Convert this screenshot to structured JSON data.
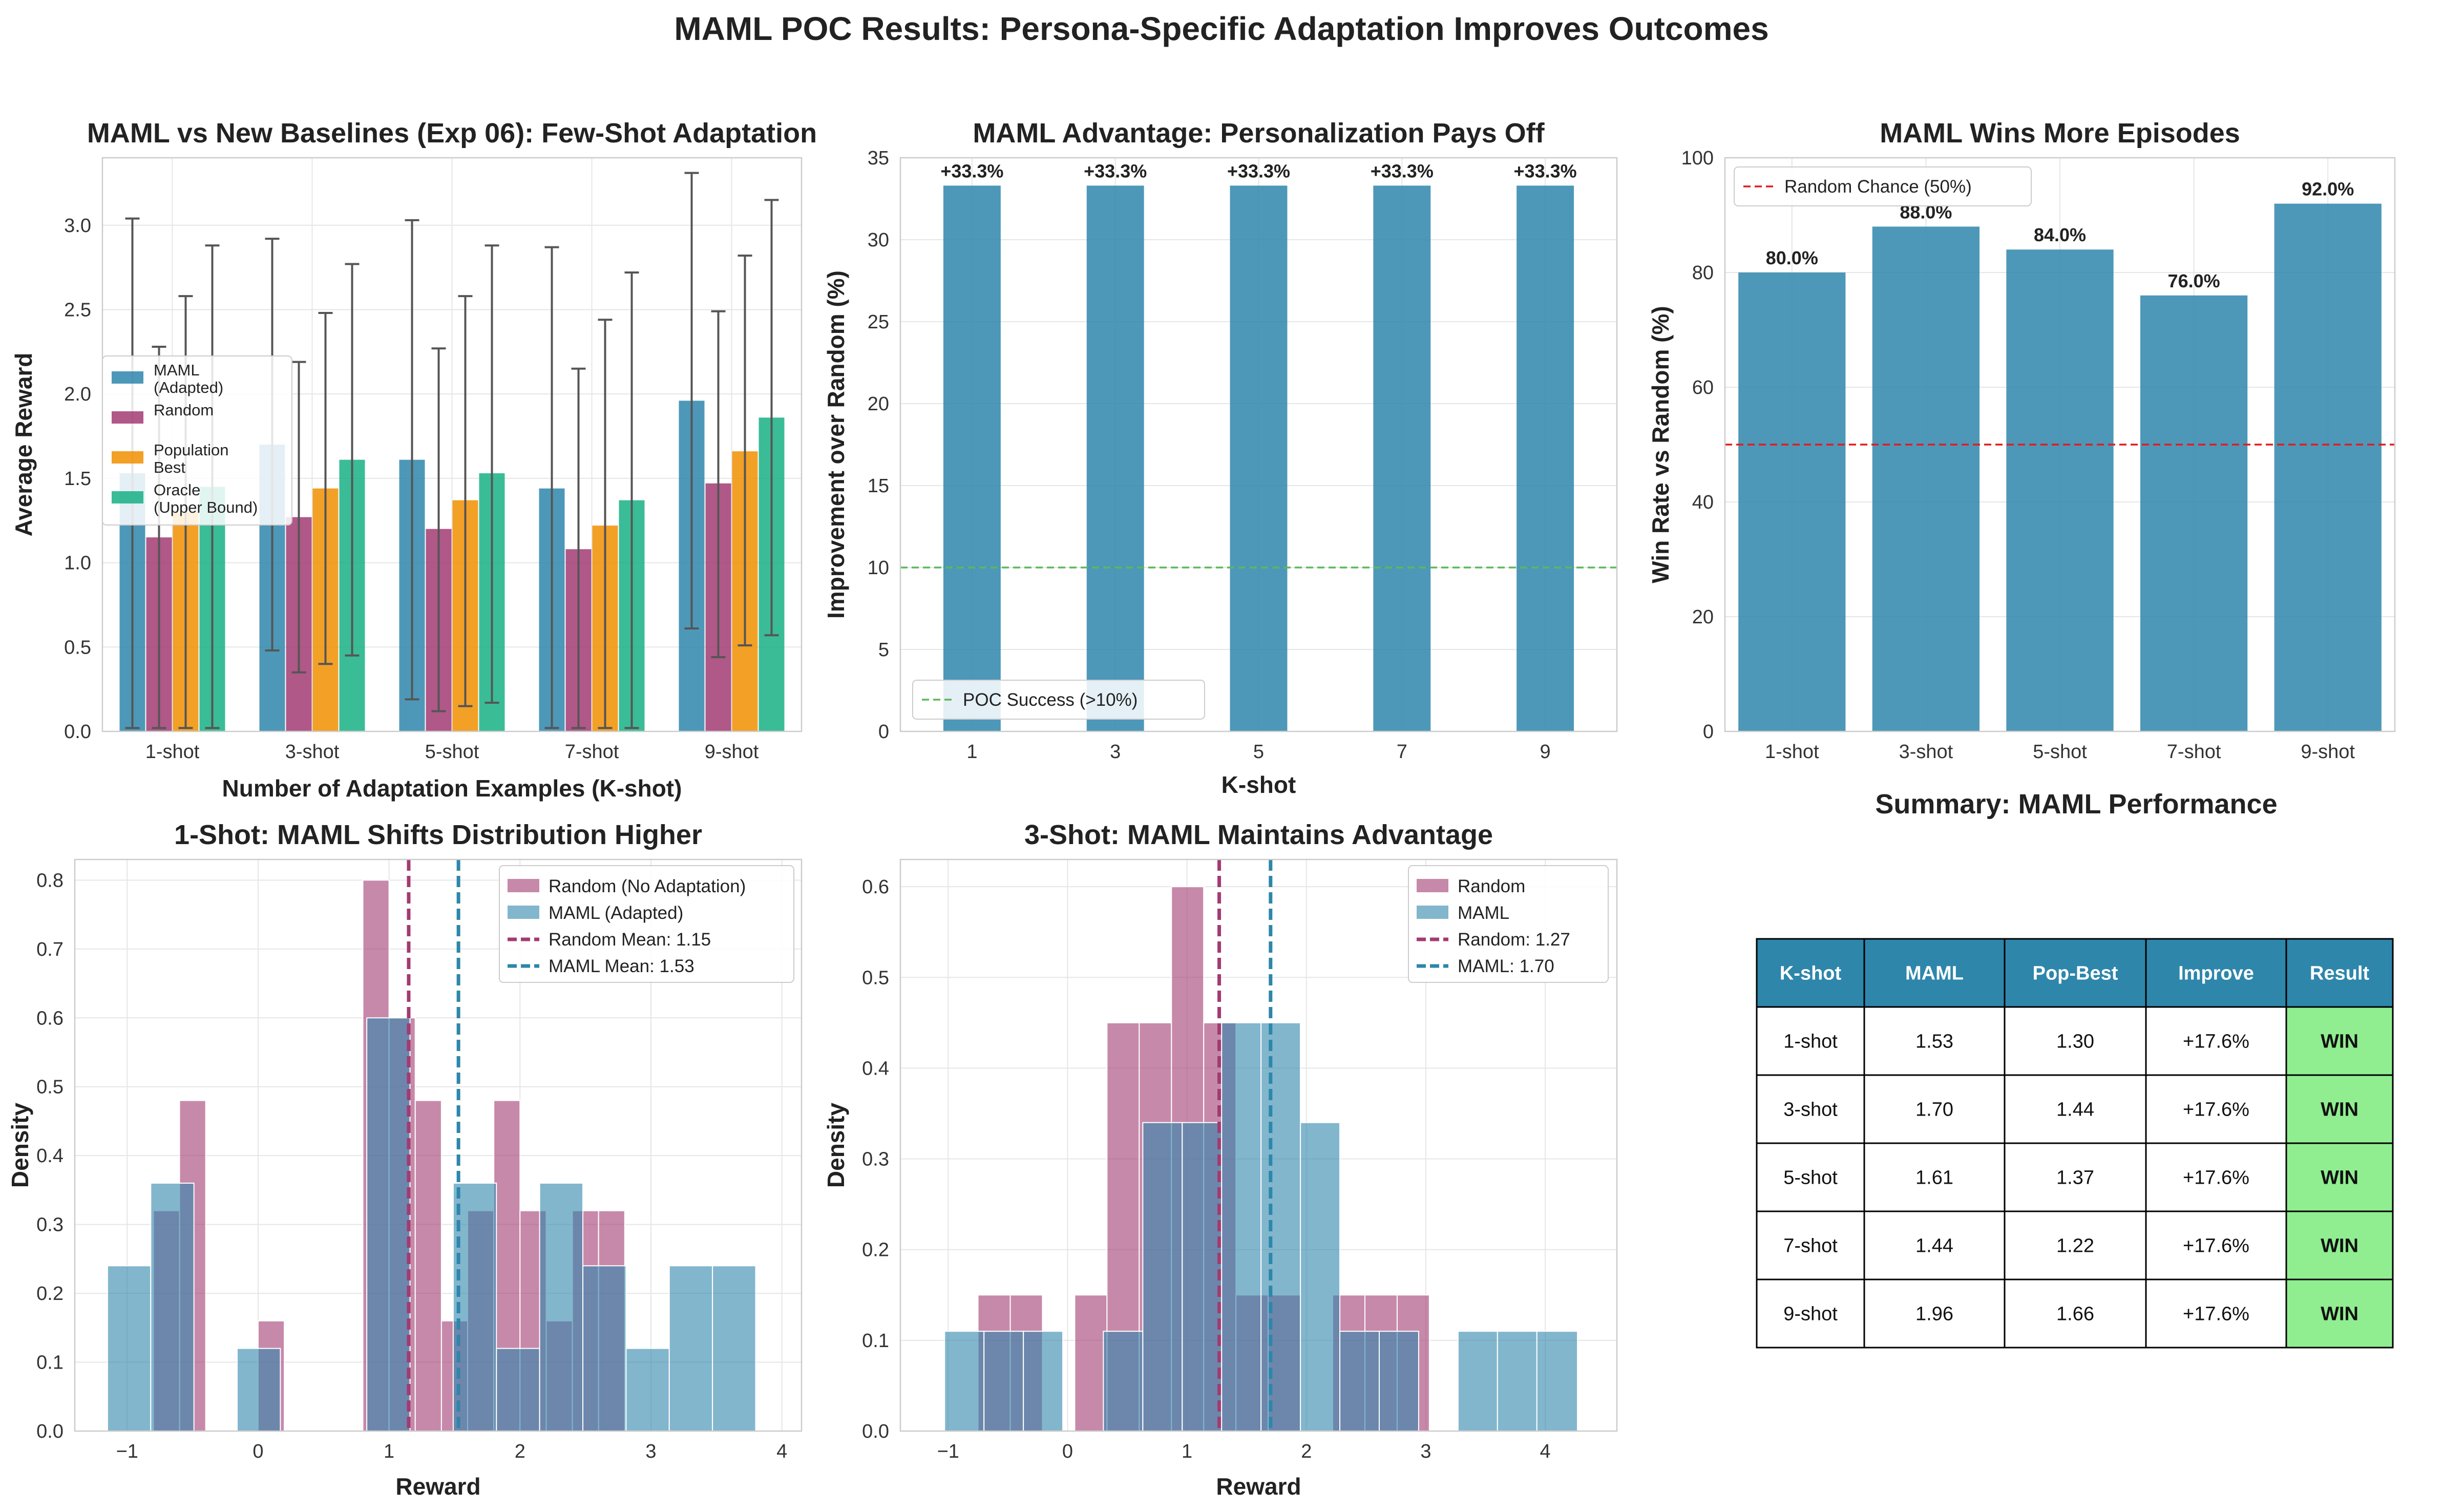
{
  "suptitle": "MAML POC Results: Persona-Specific Adaptation Improves Outcomes",
  "colors": {
    "maml": "#2e86ab",
    "random": "#a23b72",
    "popbest": "#f18f01",
    "oracle": "#17b085",
    "poc_line": "#5cb85c",
    "chance_line": "#e31a1c",
    "win_cell": "#90ee90",
    "table_header": "#2e86ab"
  },
  "chart_data": [
    {
      "id": "p1",
      "type": "bar",
      "title": "MAML vs New Baselines (Exp 06): Few-Shot Adaptation",
      "xlabel": "Number of Adaptation Examples (K-shot)",
      "ylabel": "Average Reward",
      "ylim": [
        0,
        3.4
      ],
      "yticks": [
        "0.0",
        "0.5",
        "1.0",
        "1.5",
        "2.0",
        "2.5",
        "3.0"
      ],
      "categories": [
        "1-shot",
        "3-shot",
        "5-shot",
        "7-shot",
        "9-shot"
      ],
      "legend_position": "center-left",
      "series": [
        {
          "name": "MAML\n(Adapted)",
          "values": [
            1.53,
            1.7,
            1.61,
            1.44,
            1.96
          ],
          "err_low": [
            0.02,
            0.48,
            0.19,
            0.02,
            0.61
          ],
          "err_high": [
            3.04,
            2.92,
            3.03,
            2.87,
            3.31
          ]
        },
        {
          "name": "Random",
          "values": [
            1.15,
            1.27,
            1.2,
            1.08,
            1.47
          ],
          "err_low": [
            0.02,
            0.35,
            0.12,
            0.02,
            0.44
          ],
          "err_high": [
            2.28,
            2.19,
            2.27,
            2.15,
            2.49
          ]
        },
        {
          "name": "Population\nBest",
          "values": [
            1.3,
            1.44,
            1.37,
            1.22,
            1.66
          ],
          "err_low": [
            0.02,
            0.4,
            0.15,
            0.02,
            0.51
          ],
          "err_high": [
            2.58,
            2.48,
            2.58,
            2.44,
            2.82
          ]
        },
        {
          "name": "Oracle\n(Upper Bound)",
          "values": [
            1.45,
            1.61,
            1.53,
            1.37,
            1.86
          ],
          "err_low": [
            0.02,
            0.45,
            0.17,
            0.02,
            0.57
          ],
          "err_high": [
            2.88,
            2.77,
            2.88,
            2.72,
            3.15
          ]
        }
      ]
    },
    {
      "id": "p2",
      "type": "bar",
      "title": "MAML Advantage: Personalization Pays Off",
      "xlabel": "K-shot",
      "ylabel": "Improvement over Random (%)",
      "ylim": [
        0,
        35
      ],
      "yticks": [
        "0",
        "5",
        "10",
        "15",
        "20",
        "25",
        "30",
        "35"
      ],
      "x": [
        1,
        3,
        5,
        7,
        9
      ],
      "values": [
        33.3,
        33.3,
        33.3,
        33.3,
        33.3
      ],
      "data_labels": [
        "+33.3%",
        "+33.3%",
        "+33.3%",
        "+33.3%",
        "+33.3%"
      ],
      "reference_line": {
        "y": 10,
        "label": "POC Success (>10%)"
      },
      "legend_position": "lower-left"
    },
    {
      "id": "p3",
      "type": "bar",
      "title": "MAML Wins More Episodes",
      "xlabel": "",
      "ylabel": "Win Rate vs Random (%)",
      "ylim": [
        0,
        100
      ],
      "yticks": [
        "0",
        "20",
        "40",
        "60",
        "80",
        "100"
      ],
      "categories": [
        "1-shot",
        "3-shot",
        "5-shot",
        "7-shot",
        "9-shot"
      ],
      "values": [
        80.0,
        88.0,
        84.0,
        76.0,
        92.0
      ],
      "data_labels": [
        "80.0%",
        "88.0%",
        "84.0%",
        "76.0%",
        "92.0%"
      ],
      "reference_line": {
        "y": 50,
        "label": "Random Chance (50%)"
      },
      "legend_position": "upper-left"
    },
    {
      "id": "p4",
      "type": "bar",
      "title": "1-Shot: MAML Shifts Distribution Higher",
      "xlabel": "Reward",
      "ylabel": "Density",
      "xlim": [
        -1.4,
        4.15
      ],
      "ylim": [
        0,
        0.83
      ],
      "xticks": [
        "−1",
        "0",
        "1",
        "2",
        "3",
        "4"
      ],
      "yticks": [
        "0.0",
        "0.1",
        "0.2",
        "0.3",
        "0.4",
        "0.5",
        "0.6",
        "0.7",
        "0.8"
      ],
      "random_hist": {
        "edges": [
          -0.8,
          -0.6,
          -0.4,
          -0.2,
          0.0,
          0.2,
          0.4,
          0.6,
          0.8,
          1.0,
          1.2,
          1.4,
          1.6,
          1.8,
          2.0,
          2.2,
          2.4,
          2.6,
          2.8
        ],
        "density": [
          0.32,
          0.48,
          0,
          0,
          0.16,
          0,
          0,
          0,
          0.8,
          0.6,
          0.48,
          0.16,
          0.32,
          0.48,
          0.32,
          0.16,
          0.32,
          0.32
        ]
      },
      "maml_hist": {
        "edges": [
          -1.15,
          -0.82,
          -0.49,
          -0.16,
          0.17,
          0.5,
          0.83,
          1.16,
          1.49,
          1.82,
          2.15,
          2.48,
          2.81,
          3.14,
          3.47,
          3.8
        ],
        "density": [
          0.24,
          0.36,
          0,
          0.12,
          0,
          0,
          0.6,
          0,
          0.36,
          0.12,
          0.36,
          0.24,
          0.12,
          0.24,
          0.24
        ]
      },
      "means": [
        {
          "name": "Random Mean: 1.15",
          "x": 1.15
        },
        {
          "name": "MAML Mean: 1.53",
          "x": 1.53
        }
      ],
      "legend": [
        "Random (No Adaptation)",
        "MAML (Adapted)",
        "Random Mean: 1.15",
        "MAML Mean: 1.53"
      ],
      "legend_position": "upper-right"
    },
    {
      "id": "p5",
      "type": "bar",
      "title": "3-Shot: MAML Maintains Advantage",
      "xlabel": "Reward",
      "ylabel": "Density",
      "xlim": [
        -1.4,
        4.6
      ],
      "ylim": [
        0,
        0.63
      ],
      "xticks": [
        "−1",
        "0",
        "1",
        "2",
        "3",
        "4"
      ],
      "yticks": [
        "0.0",
        "0.1",
        "0.2",
        "0.3",
        "0.4",
        "0.5",
        "0.6"
      ],
      "random_hist": {
        "edges": [
          -0.75,
          -0.48,
          -0.21,
          0.06,
          0.33,
          0.6,
          0.87,
          1.14,
          1.41,
          1.68,
          1.95,
          2.22,
          2.49,
          2.76,
          3.03
        ],
        "density": [
          0.15,
          0.15,
          0.0,
          0.15,
          0.45,
          0.45,
          0.6,
          0.45,
          0.15,
          0.15,
          0.0,
          0.15,
          0.15,
          0.15
        ]
      },
      "maml_hist": {
        "edges": [
          -1.03,
          -0.7,
          -0.37,
          -0.04,
          0.3,
          0.63,
          0.96,
          1.29,
          1.62,
          1.95,
          2.28,
          2.61,
          2.94,
          3.27,
          3.6,
          3.93,
          4.27
        ],
        "density": [
          0.11,
          0.11,
          0.11,
          0.0,
          0.11,
          0.34,
          0.34,
          0.45,
          0.45,
          0.34,
          0.11,
          0.11,
          0.0,
          0.11,
          0.11,
          0.11
        ]
      },
      "means": [
        {
          "name": "Random: 1.27",
          "x": 1.27
        },
        {
          "name": "MAML: 1.70",
          "x": 1.7
        }
      ],
      "legend": [
        "Random",
        "MAML",
        "Random: 1.27",
        "MAML: 1.70"
      ],
      "legend_position": "upper-right"
    },
    {
      "id": "p6",
      "type": "table",
      "title": "Summary: MAML Performance",
      "columns": [
        "K-shot",
        "MAML",
        "Pop-Best",
        "Improve",
        "Result"
      ],
      "rows": [
        [
          "1-shot",
          "1.53",
          "1.30",
          "+17.6%",
          "WIN"
        ],
        [
          "3-shot",
          "1.70",
          "1.44",
          "+17.6%",
          "WIN"
        ],
        [
          "5-shot",
          "1.61",
          "1.37",
          "+17.6%",
          "WIN"
        ],
        [
          "7-shot",
          "1.44",
          "1.22",
          "+17.6%",
          "WIN"
        ],
        [
          "9-shot",
          "1.96",
          "1.66",
          "+17.6%",
          "WIN"
        ]
      ]
    }
  ]
}
